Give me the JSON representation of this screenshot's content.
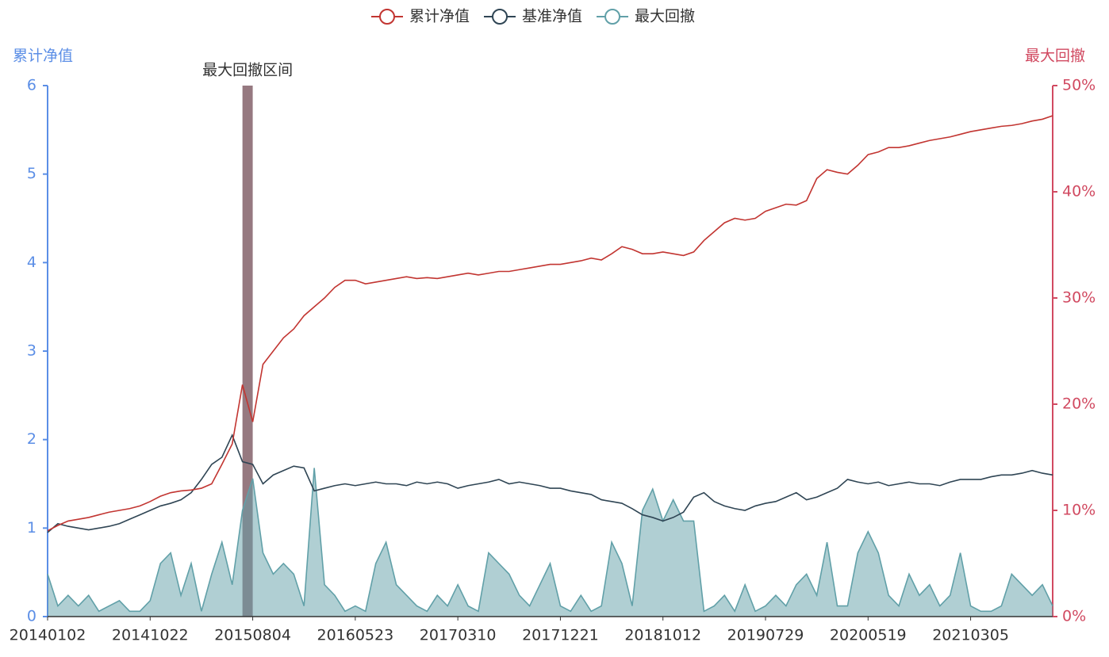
{
  "chart_data": {
    "type": "line",
    "legend_position": "top",
    "y_title": "累计净值",
    "y2_title": "最大回撤",
    "categories": [
      "20140102",
      null,
      null,
      null,
      null,
      null,
      null,
      null,
      null,
      null,
      "20141022",
      null,
      null,
      null,
      null,
      null,
      null,
      null,
      null,
      null,
      "20150804",
      null,
      null,
      null,
      null,
      null,
      null,
      null,
      null,
      null,
      "20160523",
      null,
      null,
      null,
      null,
      null,
      null,
      null,
      null,
      null,
      "20170310",
      null,
      null,
      null,
      null,
      null,
      null,
      null,
      null,
      null,
      "20171221",
      null,
      null,
      null,
      null,
      null,
      null,
      null,
      null,
      null,
      "20181012",
      null,
      null,
      null,
      null,
      null,
      null,
      null,
      null,
      null,
      "20190729",
      null,
      null,
      null,
      null,
      null,
      null,
      null,
      null,
      null,
      "20200519",
      null,
      null,
      null,
      null,
      null,
      null,
      null,
      null,
      null,
      "20210305",
      null,
      null,
      null,
      null,
      null,
      null,
      null,
      null
    ],
    "ylim": [
      0,
      6
    ],
    "yticks": [
      0,
      1,
      2,
      3,
      4,
      5,
      6
    ],
    "y2lim": [
      0,
      50
    ],
    "y2ticks": [
      {
        "value": 0,
        "label": "0%"
      },
      {
        "value": 10,
        "label": "10%"
      },
      {
        "value": 20,
        "label": "20%"
      },
      {
        "value": 30,
        "label": "30%"
      },
      {
        "value": 40,
        "label": "40%"
      },
      {
        "value": 50,
        "label": "50%"
      }
    ],
    "mark_area": {
      "label": "最大回撤区间",
      "x_range": [
        19,
        20
      ],
      "color": "#8b6a72"
    },
    "series": [
      {
        "name": "累计净值",
        "color": "#c23531",
        "values": [
          0.97,
          1.03,
          1.08,
          1.1,
          1.12,
          1.15,
          1.18,
          1.2,
          1.22,
          1.25,
          1.3,
          1.36,
          1.4,
          1.42,
          1.43,
          1.45,
          1.5,
          1.72,
          1.95,
          2.62,
          2.2,
          2.85,
          3.0,
          3.15,
          3.25,
          3.4,
          3.5,
          3.6,
          3.72,
          3.8,
          3.8,
          3.76,
          3.78,
          3.8,
          3.82,
          3.84,
          3.82,
          3.83,
          3.82,
          3.84,
          3.86,
          3.88,
          3.86,
          3.88,
          3.9,
          3.9,
          3.92,
          3.94,
          3.96,
          3.98,
          3.98,
          4.0,
          4.02,
          4.05,
          4.03,
          4.1,
          4.18,
          4.15,
          4.1,
          4.1,
          4.12,
          4.1,
          4.08,
          4.12,
          4.25,
          4.35,
          4.45,
          4.5,
          4.48,
          4.5,
          4.58,
          4.62,
          4.66,
          4.65,
          4.7,
          4.95,
          5.05,
          5.02,
          5.0,
          5.1,
          5.22,
          5.25,
          5.3,
          5.3,
          5.32,
          5.35,
          5.38,
          5.4,
          5.42,
          5.45,
          5.48,
          5.5,
          5.52,
          5.54,
          5.55,
          5.57,
          5.6,
          5.62,
          5.66
        ]
      },
      {
        "name": "基准净值",
        "color": "#2f4554",
        "values": [
          0.95,
          1.05,
          1.02,
          1.0,
          0.98,
          1.0,
          1.02,
          1.05,
          1.1,
          1.15,
          1.2,
          1.25,
          1.28,
          1.32,
          1.4,
          1.55,
          1.72,
          1.8,
          2.05,
          1.75,
          1.72,
          1.5,
          1.6,
          1.65,
          1.7,
          1.68,
          1.42,
          1.45,
          1.48,
          1.5,
          1.48,
          1.5,
          1.52,
          1.5,
          1.5,
          1.48,
          1.52,
          1.5,
          1.52,
          1.5,
          1.45,
          1.48,
          1.5,
          1.52,
          1.55,
          1.5,
          1.52,
          1.5,
          1.48,
          1.45,
          1.45,
          1.42,
          1.4,
          1.38,
          1.32,
          1.3,
          1.28,
          1.22,
          1.15,
          1.12,
          1.08,
          1.12,
          1.18,
          1.35,
          1.4,
          1.3,
          1.25,
          1.22,
          1.2,
          1.25,
          1.28,
          1.3,
          1.35,
          1.4,
          1.32,
          1.35,
          1.4,
          1.45,
          1.55,
          1.52,
          1.5,
          1.52,
          1.48,
          1.5,
          1.52,
          1.5,
          1.5,
          1.48,
          1.52,
          1.55,
          1.55,
          1.55,
          1.58,
          1.6,
          1.6,
          1.62,
          1.65,
          1.62,
          1.6
        ]
      },
      {
        "name": "最大回撤",
        "color": "#61a0a8",
        "axis": "y2",
        "area": true,
        "values": [
          4,
          1,
          2,
          1,
          2,
          0.5,
          1,
          1.5,
          0.5,
          0.5,
          1.5,
          5,
          6,
          2,
          5,
          0.5,
          4,
          7,
          3,
          10,
          13,
          6,
          4,
          5,
          4,
          1,
          14,
          3,
          2,
          0.5,
          1,
          0.5,
          5,
          7,
          3,
          2,
          1,
          0.5,
          2,
          1,
          3,
          1,
          0.5,
          6,
          5,
          4,
          2,
          1,
          3,
          5,
          1,
          0.5,
          2,
          0.5,
          1,
          7,
          5,
          1,
          10,
          12,
          9,
          11,
          9,
          9,
          0.5,
          1,
          2,
          0.5,
          3,
          0.5,
          1,
          2,
          1,
          3,
          4,
          2,
          7,
          1,
          1,
          6,
          8,
          6,
          2,
          1,
          4,
          2,
          3,
          1,
          2,
          6,
          1,
          0.5,
          0.5,
          1,
          4,
          3,
          2,
          3,
          1
        ]
      }
    ]
  }
}
